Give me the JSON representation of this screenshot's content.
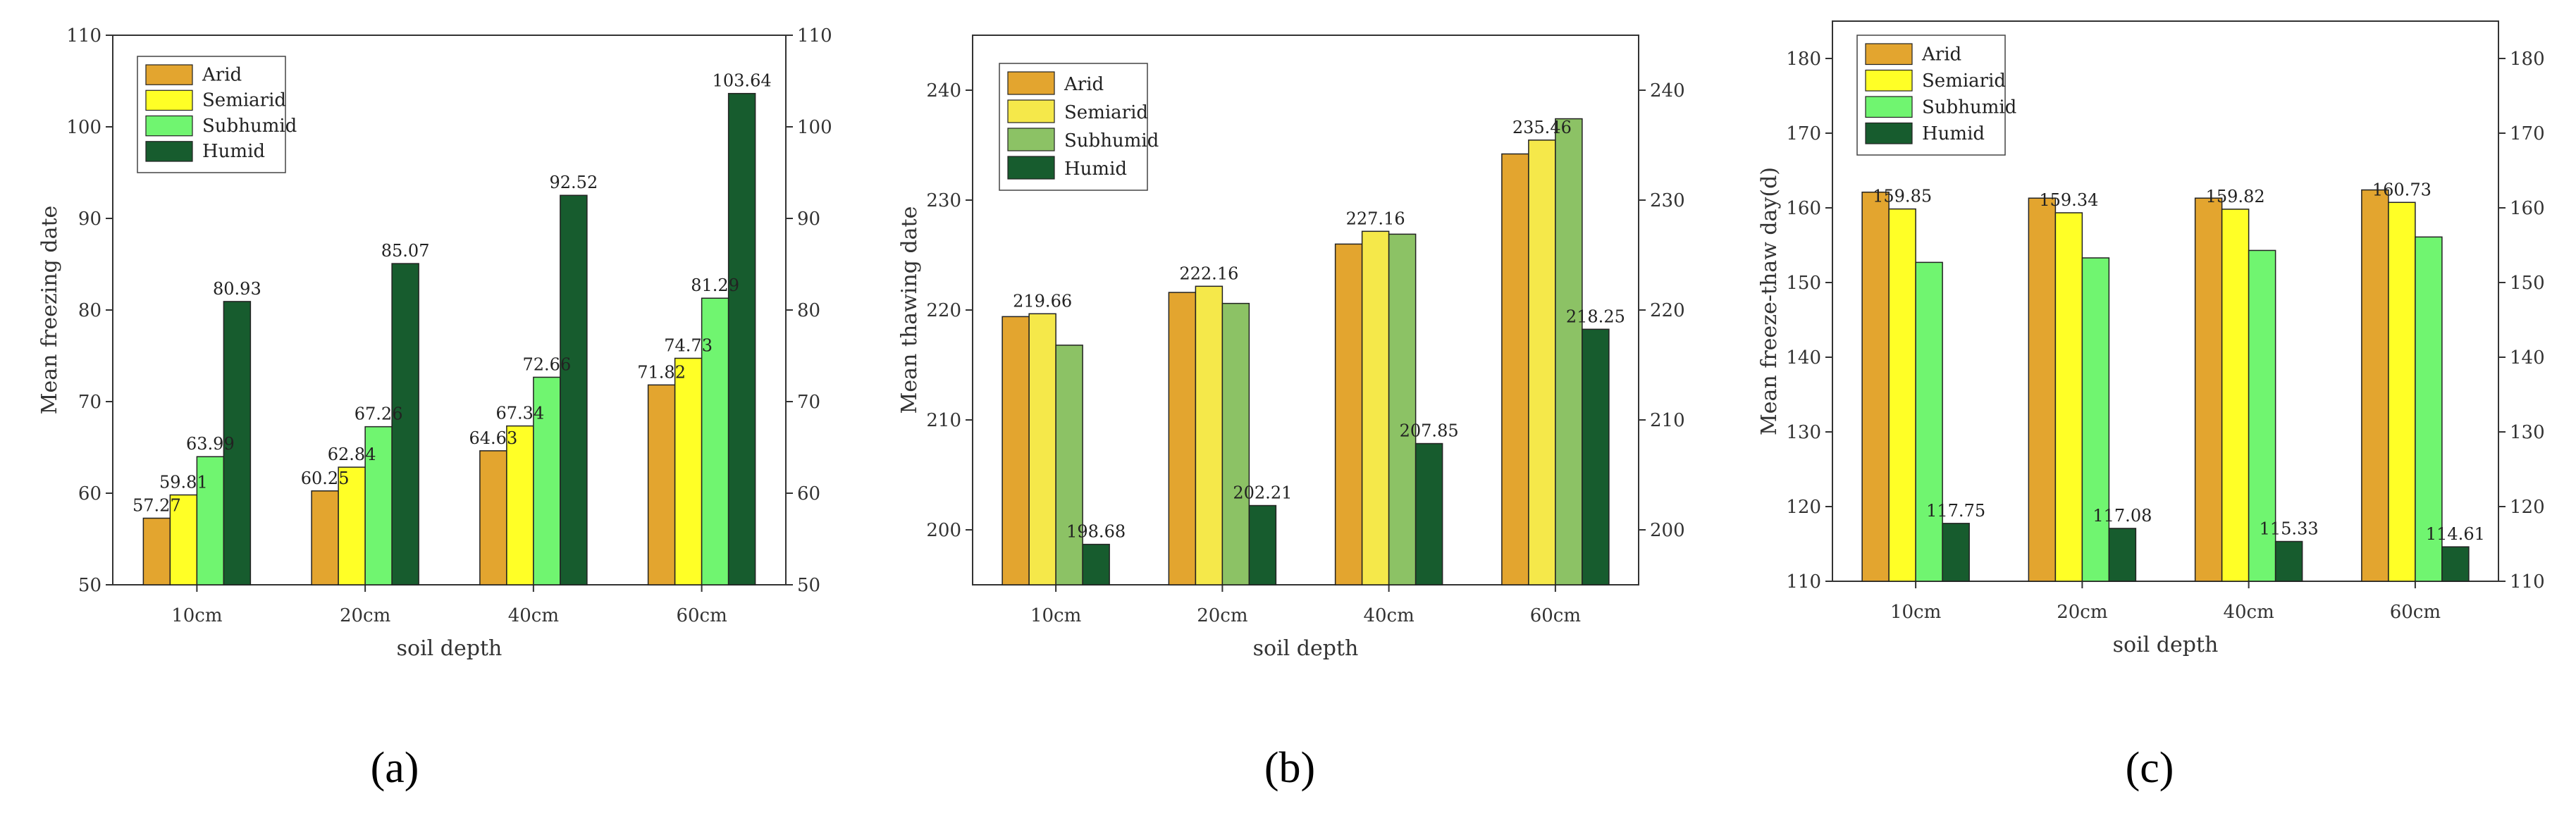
{
  "colors": {
    "Arid": "#E3A52F",
    "Semiarid": "#FFFF26",
    "Humid": "#175C2E"
  },
  "chart_data": [
    {
      "type": "bar",
      "panel": "(a)",
      "ylabel": "Mean freezing date",
      "xlabel": "soil depth",
      "categories": [
        "10cm",
        "20cm",
        "40cm",
        "60cm"
      ],
      "ylim": [
        50,
        110
      ],
      "yticks": [
        50,
        60,
        70,
        80,
        90,
        100,
        110
      ],
      "legend_position": "top-left",
      "series": [
        {
          "name": "Arid",
          "color": "#E3A52F",
          "values": [
            57.27,
            60.25,
            64.63,
            71.82
          ]
        },
        {
          "name": "Semiarid",
          "color": "#FFFF26",
          "values": [
            59.81,
            62.84,
            67.34,
            74.73
          ]
        },
        {
          "name": "Subhumid",
          "color": "#70F570",
          "values": [
            63.99,
            67.26,
            72.66,
            81.29
          ]
        },
        {
          "name": "Humid",
          "color": "#175C2E",
          "values": [
            80.93,
            85.07,
            92.52,
            103.64
          ]
        }
      ],
      "labels": [
        {
          "series": 0,
          "cat": 0,
          "text": "57.27"
        },
        {
          "series": 1,
          "cat": 0,
          "text": "59.81"
        },
        {
          "series": 2,
          "cat": 0,
          "text": "63.99"
        },
        {
          "series": 3,
          "cat": 0,
          "text": "80.93"
        },
        {
          "series": 0,
          "cat": 1,
          "text": "60.25"
        },
        {
          "series": 1,
          "cat": 1,
          "text": "62.84"
        },
        {
          "series": 2,
          "cat": 1,
          "text": "67.26"
        },
        {
          "series": 3,
          "cat": 1,
          "text": "85.07"
        },
        {
          "series": 0,
          "cat": 2,
          "text": "64.63"
        },
        {
          "series": 1,
          "cat": 2,
          "text": "67.34"
        },
        {
          "series": 2,
          "cat": 2,
          "text": "72.66"
        },
        {
          "series": 3,
          "cat": 2,
          "text": "92.52"
        },
        {
          "series": 0,
          "cat": 3,
          "text": "71.82"
        },
        {
          "series": 1,
          "cat": 3,
          "text": "74.73"
        },
        {
          "series": 2,
          "cat": 3,
          "text": "81.29"
        },
        {
          "series": 3,
          "cat": 3,
          "text": "103.64"
        }
      ]
    },
    {
      "type": "bar",
      "panel": "(b)",
      "ylabel": "Mean thawing date",
      "xlabel": "soil depth",
      "categories": [
        "10cm",
        "20cm",
        "40cm",
        "60cm"
      ],
      "ylim": [
        195,
        245
      ],
      "yticks": [
        200,
        210,
        220,
        230,
        240
      ],
      "legend_position": "top-left",
      "series": [
        {
          "name": "Arid",
          "color": "#E3A52F",
          "values": [
            219.4,
            221.6,
            226.0,
            234.2
          ]
        },
        {
          "name": "Semiarid",
          "color": "#F5E84A",
          "values": [
            219.66,
            222.16,
            227.16,
            235.46
          ]
        },
        {
          "name": "Subhumid",
          "color": "#8CC265",
          "values": [
            216.8,
            220.6,
            226.9,
            237.4
          ]
        },
        {
          "name": "Humid",
          "color": "#175C2E",
          "values": [
            198.68,
            202.21,
            207.85,
            218.25
          ]
        }
      ],
      "labels": [
        {
          "series": 1,
          "cat": 0,
          "text": "219.66"
        },
        {
          "series": 3,
          "cat": 0,
          "text": "198.68"
        },
        {
          "series": 1,
          "cat": 1,
          "text": "222.16"
        },
        {
          "series": 3,
          "cat": 1,
          "text": "202.21"
        },
        {
          "series": 1,
          "cat": 2,
          "text": "227.16"
        },
        {
          "series": 3,
          "cat": 2,
          "text": "207.85"
        },
        {
          "series": 1,
          "cat": 3,
          "text": "235.46"
        },
        {
          "series": 3,
          "cat": 3,
          "text": "218.25"
        }
      ]
    },
    {
      "type": "bar",
      "panel": "(c)",
      "ylabel": "Mean freeze-thaw day(d)",
      "xlabel": "soil depth",
      "categories": [
        "10cm",
        "20cm",
        "40cm",
        "60cm"
      ],
      "ylim": [
        110,
        185
      ],
      "yticks": [
        110,
        120,
        130,
        140,
        150,
        160,
        170,
        180
      ],
      "legend_position": "top-left",
      "series": [
        {
          "name": "Arid",
          "color": "#E3A52F",
          "values": [
            162.1,
            161.3,
            161.3,
            162.4
          ]
        },
        {
          "name": "Semiarid",
          "color": "#FFFF26",
          "values": [
            159.85,
            159.34,
            159.82,
            160.73
          ]
        },
        {
          "name": "Subhumid",
          "color": "#70F570",
          "values": [
            152.7,
            153.3,
            154.3,
            156.1
          ]
        },
        {
          "name": "Humid",
          "color": "#175C2E",
          "values": [
            117.75,
            117.08,
            115.33,
            114.61
          ]
        }
      ],
      "labels": [
        {
          "series": 1,
          "cat": 0,
          "text": "159.85"
        },
        {
          "series": 3,
          "cat": 0,
          "text": "117.75"
        },
        {
          "series": 1,
          "cat": 1,
          "text": "159.34"
        },
        {
          "series": 3,
          "cat": 1,
          "text": "117.08"
        },
        {
          "series": 1,
          "cat": 2,
          "text": "159.82"
        },
        {
          "series": 3,
          "cat": 2,
          "text": "115.33"
        },
        {
          "series": 1,
          "cat": 3,
          "text": "160.73"
        },
        {
          "series": 3,
          "cat": 3,
          "text": "114.61"
        }
      ]
    }
  ]
}
